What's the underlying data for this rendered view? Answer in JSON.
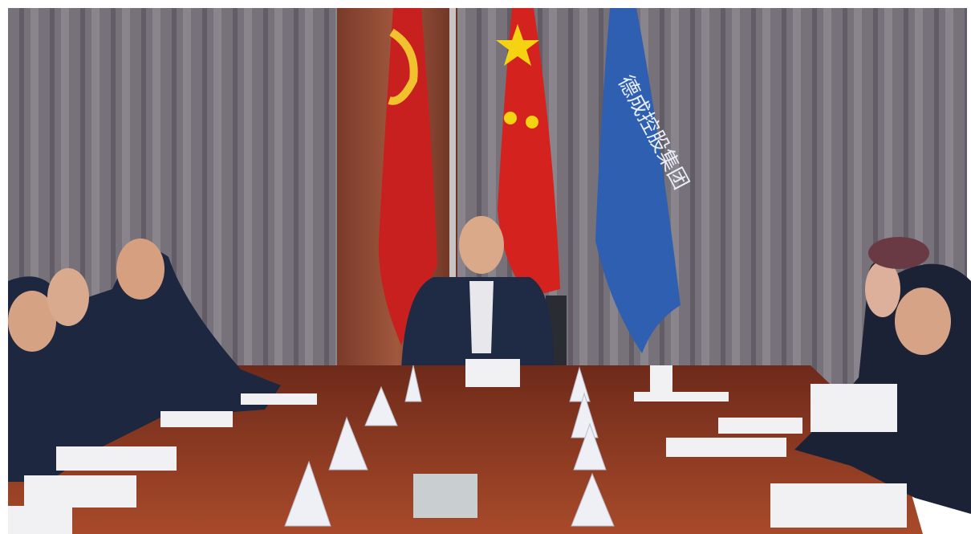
{
  "image": {
    "flag_text": "德成控股集团"
  }
}
